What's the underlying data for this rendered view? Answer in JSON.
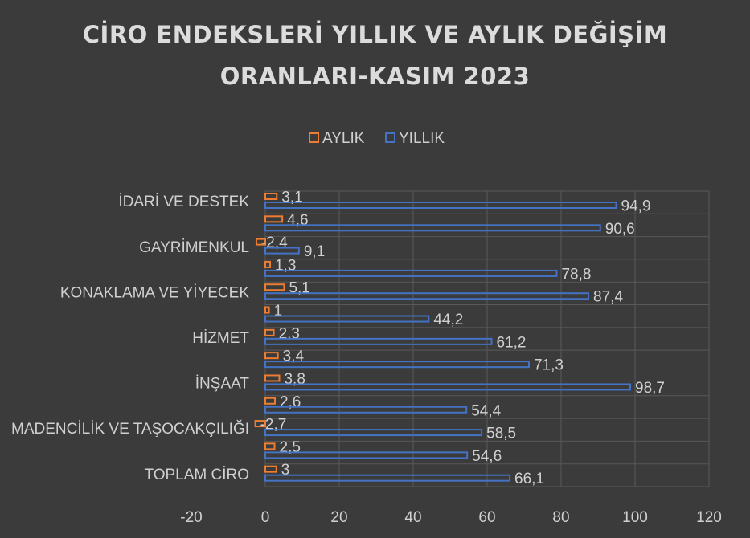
{
  "chart_data": {
    "type": "bar",
    "orientation": "horizontal",
    "title_line1": "CİRO ENDEKSLERİ YILLIK VE AYLIK DEĞİŞİM",
    "title_line2": "ORANLARI-KASIM 2023",
    "legend_position": "top",
    "grid": true,
    "xlim": [
      -20,
      120
    ],
    "x_ticks": [
      "-20",
      "0",
      "20",
      "40",
      "60",
      "80",
      "100",
      "120"
    ],
    "category_labels": [
      {
        "row": 0,
        "text": "İDARİ VE DESTEK"
      },
      {
        "row": 2,
        "text": "GAYRİMENKUL"
      },
      {
        "row": 4,
        "text": "KONAKLAMA VE YİYECEK"
      },
      {
        "row": 6,
        "text": "HİZMET"
      },
      {
        "row": 8,
        "text": "İNŞAAT"
      },
      {
        "row": 10,
        "text": "MADENCİLİK VE TAŞOCAKÇILIĞI"
      },
      {
        "row": 12,
        "text": "TOPLAM CİRO"
      }
    ],
    "series": [
      {
        "name": "AYLIK",
        "color": "#ed7d31",
        "values": [
          3.1,
          4.6,
          -2.4,
          1.3,
          5.1,
          1,
          2.3,
          3.4,
          3.8,
          2.6,
          -2.7,
          2.5,
          3
        ],
        "labels": [
          "3,1",
          "4,6",
          "-2,4",
          "1,3",
          "5,1",
          "1",
          "2,3",
          "3,4",
          "3,8",
          "2,6",
          "-2,7",
          "2,5",
          "3"
        ]
      },
      {
        "name": "YILLIK",
        "color": "#4472c4",
        "values": [
          94.9,
          90.6,
          9.1,
          78.8,
          87.4,
          44.2,
          61.2,
          71.3,
          98.7,
          54.4,
          58.5,
          54.6,
          66.1
        ],
        "labels": [
          "94,9",
          "90,6",
          "9,1",
          "78,8",
          "87,4",
          "44,2",
          "61,2",
          "71,3",
          "98,7",
          "54,4",
          "58,5",
          "54,6",
          "66,1"
        ]
      }
    ]
  }
}
